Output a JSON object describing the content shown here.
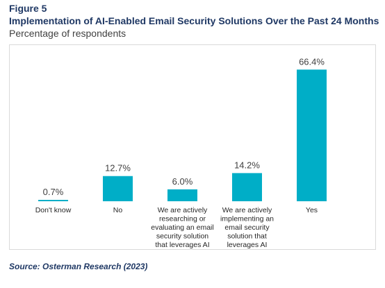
{
  "figure_label": "Figure 5",
  "chart_data": {
    "type": "bar",
    "title": "Implementation of AI-Enabled Email Security Solutions Over the Past 24 Months",
    "subtitle": "Percentage of respondents",
    "categories": [
      "Don't know",
      "No",
      "We are actively researching or evaluating an email security solution that leverages AI",
      "We are actively implementing an email security solution that leverages AI",
      "Yes"
    ],
    "category_lines": [
      [
        "Don't know"
      ],
      [
        "No"
      ],
      [
        "We are actively",
        "researching or",
        "evaluating an email",
        "security solution",
        "that leverages AI"
      ],
      [
        "We are actively",
        "implementing an",
        "email security",
        "solution that",
        "leverages AI"
      ],
      [
        "Yes"
      ]
    ],
    "values": [
      0.7,
      12.7,
      6.0,
      14.2,
      66.4
    ],
    "value_labels": [
      "0.7%",
      "12.7%",
      "6.0%",
      "14.2%",
      "66.4%"
    ],
    "ylim": [
      0,
      70
    ],
    "bar_color": "#00aec7",
    "grid": false,
    "legend": "none"
  },
  "source": "Source: Osterman Research (2023)"
}
